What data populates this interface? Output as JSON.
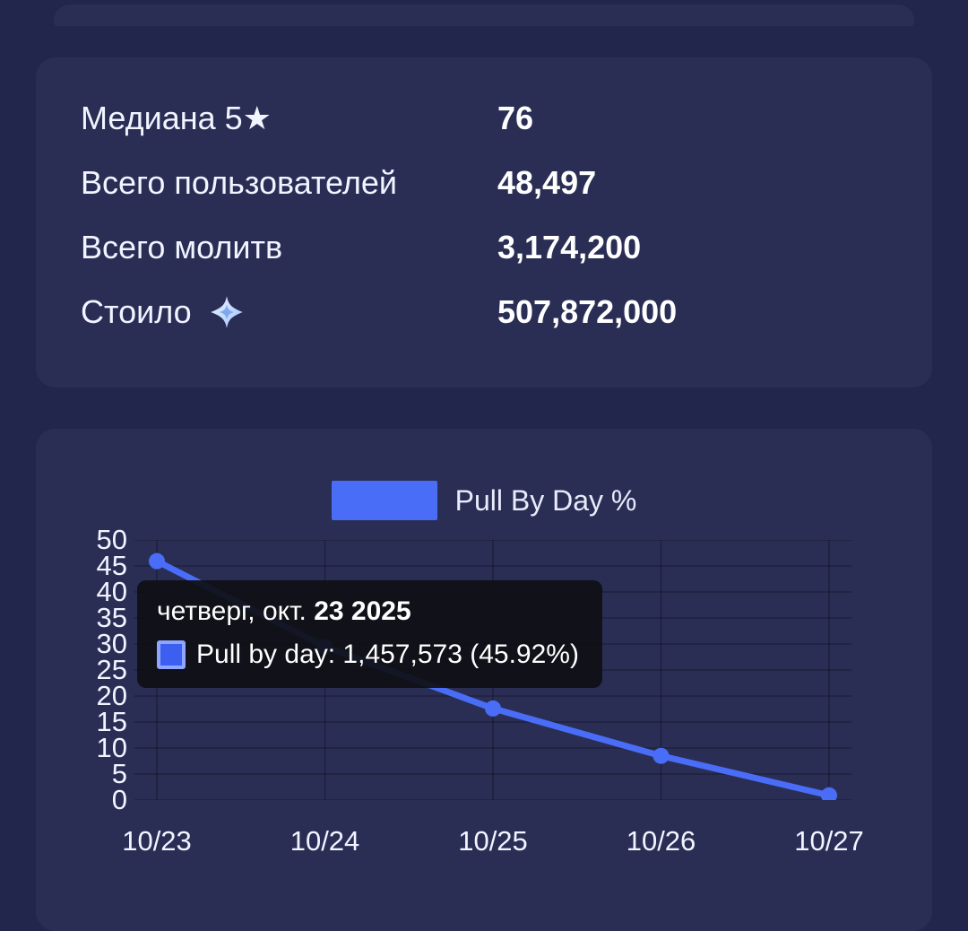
{
  "theme": {
    "background": "#22264c",
    "card": "#2a2e55",
    "accent_blue": "#4a6df8",
    "tooltip_bg": "#0f0f14",
    "text": "#ffffff"
  },
  "stats": {
    "rows": [
      {
        "label": "Медиана 5★",
        "value": "76"
      },
      {
        "label": "Всего пользователей",
        "value": "48,497"
      },
      {
        "label": "Всего молитв",
        "value": "3,174,200"
      },
      {
        "label": "Стоило",
        "value": "507,872,000",
        "icon": "primogem-icon"
      }
    ]
  },
  "chart": {
    "legend_label": "Pull By Day %",
    "tooltip": {
      "date_normal": "четверг, окт. ",
      "date_bold": "23 2025",
      "series_text": "Pull by day: 1,457,573 (45.92%)"
    }
  },
  "chart_data": {
    "type": "line",
    "title": "Pull By Day %",
    "x": [
      "10/23",
      "10/24",
      "10/25",
      "10/26",
      "10/27"
    ],
    "series": [
      {
        "name": "Pull by day",
        "values": [
          45.92,
          29.5,
          17.6,
          8.5,
          0.9
        ]
      }
    ],
    "xlabel": "",
    "ylabel": "",
    "ylim": [
      0,
      50
    ],
    "yticks": [
      0,
      5,
      10,
      15,
      20,
      25,
      30,
      35,
      40,
      45,
      50
    ],
    "grid": true,
    "legend_position": "top",
    "line_color": "#4a6df8",
    "tooltip_point": {
      "x": "10/23",
      "date": "четверг, окт. 23 2025",
      "series": "Pull by day",
      "value": 1457573,
      "percent": 45.92
    }
  }
}
